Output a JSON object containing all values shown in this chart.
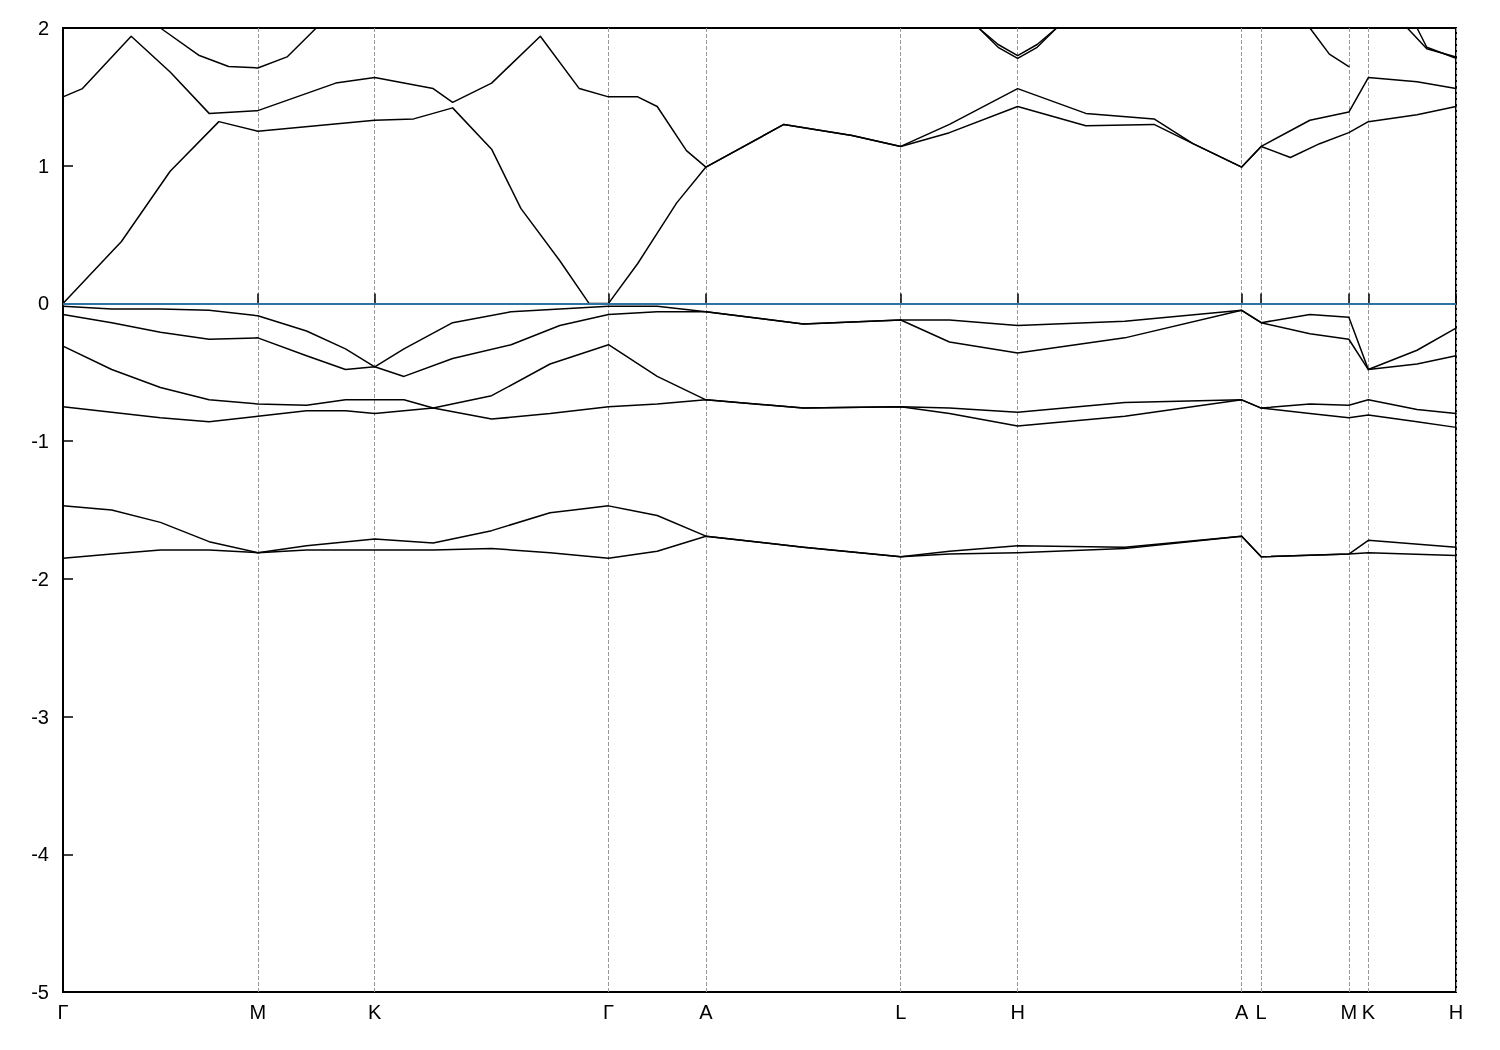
{
  "chart_data": {
    "type": "line",
    "marker": "none",
    "line_style": "solid",
    "grid": "x",
    "ylim": [
      -5,
      2
    ],
    "yticks": [
      -5,
      -4,
      -3,
      -2,
      -1,
      0,
      1,
      2
    ],
    "ref_lines": [
      {
        "axis": "y",
        "value": 0,
        "color": "#3a9ad9"
      }
    ],
    "categories": [
      "Γ",
      null,
      null,
      null,
      null,
      null,
      null,
      null,
      null,
      null,
      null,
      null,
      null,
      null,
      null,
      null,
      null,
      null,
      null,
      null,
      "M",
      null,
      null,
      null,
      null,
      null,
      null,
      null,
      null,
      null,
      null,
      null,
      "K",
      null,
      null,
      null,
      null,
      null,
      null,
      null,
      null,
      null,
      null,
      null,
      null,
      null,
      null,
      null,
      null,
      null,
      null,
      null,
      null,
      null,
      null,
      null,
      "Γ",
      null,
      null,
      null,
      null,
      null,
      null,
      null,
      null,
      null,
      "A",
      null,
      null,
      null,
      null,
      null,
      null,
      null,
      null,
      null,
      null,
      null,
      null,
      null,
      null,
      null,
      null,
      null,
      null,
      null,
      "L",
      null,
      null,
      null,
      null,
      null,
      null,
      null,
      null,
      null,
      null,
      null,
      "H",
      null,
      null,
      null,
      null,
      null,
      null,
      null,
      null,
      null,
      null,
      null,
      null,
      null,
      null,
      null,
      null,
      null,
      null,
      null,
      null,
      null,
      null,
      "A",
      null,
      "L",
      null,
      null,
      null,
      null,
      null,
      null,
      null,
      null,
      "M",
      null,
      "K",
      null,
      null,
      null,
      null,
      null,
      null,
      null,
      null,
      "H"
    ],
    "series": [
      {
        "color": "#000000",
        "values": [
          -1.85,
          null,
          null,
          null,
          null,
          -1.82,
          null,
          null,
          null,
          null,
          -1.79,
          null,
          null,
          null,
          null,
          -1.79,
          null,
          null,
          null,
          null,
          -1.81,
          null,
          null,
          null,
          null,
          -1.79,
          null,
          null,
          null,
          null,
          null,
          null,
          -1.79,
          null,
          null,
          null,
          null,
          null,
          -1.79,
          null,
          null,
          null,
          null,
          null,
          -1.78,
          null,
          null,
          null,
          null,
          null,
          -1.81,
          null,
          null,
          null,
          null,
          null,
          -1.85,
          null,
          null,
          null,
          null,
          -1.8,
          null,
          null,
          null,
          null,
          -1.69,
          null,
          null,
          null,
          null,
          null,
          null,
          null,
          null,
          null,
          -1.77,
          null,
          null,
          null,
          null,
          null,
          null,
          null,
          null,
          null,
          -1.84,
          null,
          null,
          null,
          null,
          -1.82,
          null,
          null,
          null,
          null,
          null,
          null,
          -1.81,
          null,
          null,
          null,
          null,
          null,
          null,
          null,
          null,
          null,
          null,
          -1.78,
          null,
          null,
          null,
          null,
          null,
          null,
          null,
          null,
          null,
          null,
          null,
          -1.69,
          null,
          -1.84,
          null,
          null,
          null,
          null,
          null,
          null,
          null,
          null,
          -1.82,
          null,
          -1.81,
          null,
          null,
          null,
          null,
          null,
          null,
          null,
          null,
          -1.83
        ]
      },
      {
        "color": "#000000",
        "values": [
          -1.47,
          null,
          null,
          null,
          null,
          -1.5,
          null,
          null,
          null,
          null,
          -1.59,
          null,
          null,
          null,
          null,
          -1.73,
          null,
          null,
          null,
          null,
          -1.81,
          null,
          null,
          null,
          null,
          -1.76,
          null,
          null,
          null,
          null,
          null,
          null,
          -1.71,
          null,
          null,
          null,
          null,
          null,
          -1.74,
          null,
          null,
          null,
          null,
          null,
          -1.65,
          null,
          null,
          null,
          null,
          null,
          -1.52,
          null,
          null,
          null,
          null,
          null,
          -1.47,
          null,
          null,
          null,
          null,
          -1.54,
          null,
          null,
          null,
          null,
          -1.69,
          null,
          null,
          null,
          null,
          null,
          null,
          null,
          null,
          null,
          -1.77,
          null,
          null,
          null,
          null,
          null,
          null,
          null,
          null,
          null,
          -1.84,
          null,
          null,
          null,
          null,
          -1.8,
          null,
          null,
          null,
          null,
          null,
          null,
          -1.76,
          null,
          null,
          null,
          null,
          null,
          null,
          null,
          null,
          null,
          null,
          -1.77,
          null,
          null,
          null,
          null,
          null,
          null,
          null,
          null,
          null,
          null,
          null,
          -1.69,
          null,
          -1.84,
          null,
          null,
          null,
          null,
          null,
          null,
          null,
          null,
          -1.82,
          null,
          -1.72,
          null,
          null,
          null,
          null,
          null,
          null,
          null,
          null,
          -1.77
        ]
      },
      {
        "color": "#000000",
        "values": [
          -0.75,
          null,
          null,
          null,
          null,
          -0.79,
          null,
          null,
          null,
          null,
          -0.83,
          null,
          null,
          null,
          null,
          -0.86,
          null,
          null,
          null,
          null,
          -0.82,
          null,
          null,
          null,
          null,
          -0.78,
          null,
          null,
          null,
          -0.78,
          null,
          null,
          -0.8,
          null,
          null,
          -0.78,
          null,
          null,
          -0.76,
          null,
          null,
          null,
          null,
          null,
          -0.84,
          null,
          null,
          null,
          null,
          null,
          -0.8,
          null,
          null,
          null,
          null,
          null,
          -0.75,
          null,
          null,
          null,
          null,
          -0.73,
          null,
          null,
          null,
          null,
          -0.7,
          null,
          null,
          null,
          null,
          null,
          null,
          null,
          null,
          null,
          -0.76,
          null,
          null,
          null,
          null,
          null,
          null,
          null,
          null,
          null,
          -0.75,
          null,
          null,
          null,
          null,
          -0.8,
          null,
          null,
          null,
          null,
          null,
          null,
          -0.89,
          null,
          null,
          null,
          null,
          null,
          null,
          null,
          null,
          null,
          null,
          -0.82,
          null,
          null,
          null,
          null,
          null,
          null,
          null,
          null,
          null,
          null,
          null,
          -0.7,
          null,
          -0.76,
          null,
          null,
          null,
          null,
          -0.8,
          null,
          null,
          null,
          -0.83,
          null,
          -0.81,
          null,
          null,
          null,
          null,
          -0.86,
          null,
          null,
          null,
          -0.9
        ]
      },
      {
        "color": "#000000",
        "values": [
          -0.31,
          null,
          null,
          null,
          null,
          -0.48,
          null,
          null,
          null,
          null,
          -0.61,
          null,
          null,
          null,
          null,
          -0.7,
          null,
          null,
          null,
          null,
          -0.73,
          null,
          null,
          null,
          null,
          -0.74,
          null,
          null,
          null,
          -0.7,
          null,
          null,
          -0.7,
          null,
          null,
          -0.7,
          null,
          null,
          -0.76,
          null,
          null,
          null,
          null,
          null,
          -0.67,
          null,
          null,
          null,
          null,
          null,
          -0.44,
          null,
          null,
          null,
          null,
          null,
          -0.3,
          null,
          null,
          null,
          null,
          -0.53,
          null,
          null,
          null,
          null,
          -0.7,
          null,
          null,
          null,
          null,
          null,
          null,
          null,
          null,
          null,
          -0.76,
          null,
          null,
          null,
          null,
          null,
          null,
          null,
          null,
          null,
          -0.75,
          null,
          null,
          null,
          null,
          -0.76,
          null,
          null,
          null,
          null,
          null,
          null,
          -0.79,
          null,
          null,
          null,
          null,
          null,
          null,
          null,
          null,
          null,
          null,
          -0.72,
          null,
          null,
          null,
          null,
          null,
          null,
          null,
          null,
          null,
          null,
          null,
          -0.7,
          null,
          -0.76,
          null,
          null,
          null,
          null,
          -0.73,
          null,
          null,
          null,
          -0.74,
          null,
          -0.7,
          null,
          null,
          null,
          null,
          -0.77,
          null,
          null,
          null,
          -0.8
        ]
      },
      {
        "color": "#000000",
        "values": [
          -0.08,
          null,
          null,
          null,
          null,
          -0.14,
          null,
          null,
          null,
          null,
          -0.21,
          null,
          null,
          null,
          null,
          -0.26,
          null,
          null,
          null,
          null,
          -0.25,
          null,
          null,
          null,
          null,
          -0.38,
          null,
          null,
          null,
          -0.48,
          null,
          null,
          -0.46,
          null,
          null,
          -0.53,
          null,
          null,
          null,
          null,
          -0.4,
          null,
          null,
          null,
          null,
          null,
          -0.3,
          null,
          null,
          null,
          null,
          -0.16,
          null,
          null,
          null,
          null,
          -0.08,
          null,
          null,
          null,
          null,
          -0.06,
          null,
          null,
          null,
          null,
          -0.06,
          null,
          null,
          null,
          null,
          null,
          null,
          null,
          null,
          null,
          -0.15,
          null,
          null,
          null,
          null,
          null,
          null,
          null,
          null,
          null,
          -0.12,
          null,
          null,
          null,
          null,
          -0.28,
          null,
          null,
          null,
          null,
          null,
          null,
          -0.36,
          null,
          null,
          null,
          null,
          null,
          null,
          null,
          null,
          null,
          null,
          -0.25,
          null,
          null,
          null,
          null,
          null,
          null,
          null,
          null,
          null,
          null,
          null,
          -0.05,
          null,
          -0.14,
          null,
          null,
          null,
          null,
          -0.22,
          null,
          null,
          null,
          -0.26,
          null,
          -0.48,
          null,
          null,
          null,
          null,
          -0.44,
          null,
          null,
          null,
          -0.38
        ]
      },
      {
        "color": "#000000",
        "values": [
          -0.02,
          null,
          null,
          null,
          null,
          -0.04,
          null,
          null,
          null,
          null,
          -0.04,
          null,
          null,
          null,
          null,
          -0.05,
          null,
          null,
          null,
          null,
          -0.09,
          null,
          null,
          null,
          null,
          -0.2,
          null,
          null,
          null,
          -0.33,
          null,
          null,
          -0.46,
          null,
          null,
          -0.33,
          null,
          null,
          null,
          null,
          -0.14,
          null,
          null,
          null,
          null,
          null,
          -0.06,
          null,
          null,
          null,
          null,
          -0.04,
          null,
          null,
          null,
          null,
          -0.02,
          null,
          null,
          null,
          null,
          -0.02,
          null,
          null,
          null,
          null,
          -0.06,
          null,
          null,
          null,
          null,
          null,
          null,
          null,
          null,
          null,
          -0.15,
          null,
          null,
          null,
          null,
          null,
          null,
          null,
          null,
          null,
          -0.12,
          null,
          null,
          null,
          null,
          -0.12,
          null,
          null,
          null,
          null,
          null,
          null,
          -0.16,
          null,
          null,
          null,
          null,
          null,
          null,
          null,
          null,
          null,
          null,
          -0.13,
          null,
          null,
          null,
          null,
          null,
          null,
          null,
          null,
          null,
          null,
          null,
          -0.05,
          null,
          -0.14,
          null,
          null,
          null,
          null,
          -0.08,
          null,
          null,
          null,
          -0.1,
          null,
          -0.48,
          null,
          null,
          null,
          null,
          -0.34,
          null,
          null,
          null,
          -0.18
        ]
      },
      {
        "color": "#000000",
        "values": [
          0.0,
          null,
          null,
          null,
          null,
          null,
          0.45,
          null,
          null,
          null,
          null,
          0.96,
          null,
          null,
          null,
          null,
          1.32,
          null,
          null,
          null,
          1.25,
          null,
          null,
          null,
          null,
          null,
          1.29,
          null,
          null,
          null,
          null,
          null,
          1.33,
          null,
          null,
          null,
          1.34,
          null,
          null,
          null,
          1.42,
          null,
          null,
          null,
          1.12,
          null,
          null,
          0.69,
          null,
          null,
          null,
          0.31,
          null,
          null,
          0.0,
          null,
          0.0,
          null,
          null,
          0.29,
          null,
          null,
          null,
          0.73,
          null,
          null,
          0.99,
          null,
          null,
          null,
          null,
          null,
          null,
          null,
          1.3,
          null,
          null,
          null,
          null,
          null,
          null,
          1.22,
          null,
          null,
          null,
          null,
          1.14,
          null,
          null,
          null,
          null,
          1.24,
          null,
          null,
          null,
          null,
          null,
          null,
          1.43,
          null,
          null,
          null,
          null,
          null,
          null,
          1.29,
          null,
          null,
          null,
          null,
          null,
          null,
          1.3,
          null,
          null,
          null,
          1.16,
          null,
          null,
          null,
          null,
          0.99,
          null,
          1.14,
          null,
          null,
          1.06,
          null,
          null,
          1.16,
          null,
          null,
          1.24,
          null,
          1.32,
          null,
          null,
          null,
          null,
          1.37,
          null,
          null,
          null,
          1.43
        ]
      },
      {
        "color": "#000000",
        "values": [
          1.5,
          null,
          1.56,
          null,
          null,
          null,
          null,
          1.94,
          null,
          null,
          null,
          1.68,
          null,
          null,
          null,
          1.38,
          null,
          null,
          null,
          null,
          1.4,
          null,
          null,
          null,
          null,
          null,
          null,
          null,
          1.6,
          null,
          null,
          null,
          1.64,
          null,
          null,
          null,
          null,
          null,
          1.56,
          null,
          1.46,
          null,
          null,
          null,
          1.6,
          null,
          null,
          null,
          null,
          1.94,
          null,
          null,
          null,
          1.56,
          null,
          null,
          1.5,
          null,
          null,
          1.5,
          null,
          1.43,
          null,
          null,
          1.11,
          null,
          0.99,
          null,
          null,
          null,
          null,
          null,
          null,
          null,
          1.3,
          null,
          null,
          null,
          null,
          null,
          null,
          1.22,
          null,
          null,
          null,
          null,
          1.14,
          null,
          null,
          null,
          null,
          1.3,
          null,
          null,
          null,
          null,
          null,
          null,
          1.56,
          null,
          null,
          null,
          null,
          null,
          null,
          1.38,
          null,
          null,
          null,
          null,
          null,
          null,
          1.34,
          null,
          null,
          null,
          1.16,
          null,
          null,
          null,
          null,
          0.99,
          null,
          1.14,
          null,
          null,
          null,
          null,
          1.33,
          null,
          null,
          null,
          1.39,
          null,
          1.64,
          null,
          null,
          null,
          null,
          1.61,
          null,
          null,
          null,
          1.56
        ]
      },
      {
        "color": "#000000",
        "values": [
          null,
          null,
          null,
          null,
          null,
          null,
          null,
          null,
          null,
          null,
          2.0,
          null,
          null,
          null,
          1.8,
          null,
          null,
          1.72,
          null,
          null,
          1.71,
          null,
          null,
          1.79,
          null,
          null,
          2.0,
          null,
          null,
          null,
          null,
          null,
          null,
          null,
          null,
          null,
          null,
          null,
          null,
          null,
          null,
          null,
          null,
          null,
          null,
          null,
          null,
          null,
          null,
          null,
          null,
          null,
          null,
          null,
          null,
          null,
          null,
          null,
          null,
          null,
          null,
          null,
          null,
          null,
          null,
          null,
          null,
          null,
          null,
          null,
          null,
          null,
          null,
          null,
          null,
          null,
          null,
          null,
          null,
          null,
          null,
          null,
          null,
          null,
          null,
          null,
          null,
          null,
          null,
          null,
          null,
          null,
          null,
          null,
          null,
          null,
          null,
          null,
          null,
          null,
          null,
          null,
          null,
          null,
          null,
          null,
          null,
          null,
          null,
          null,
          null,
          null,
          null,
          null,
          null,
          null,
          null,
          null,
          null,
          null,
          null,
          null,
          null,
          null,
          null,
          null,
          null,
          null,
          null,
          null,
          null,
          null,
          null,
          null,
          null,
          null,
          null,
          null,
          null,
          null,
          null,
          null,
          null,
          null
        ]
      },
      {
        "color": "#000000",
        "values": [
          null,
          null,
          null,
          null,
          null,
          null,
          null,
          null,
          null,
          null,
          null,
          null,
          null,
          null,
          null,
          null,
          null,
          null,
          null,
          null,
          null,
          null,
          null,
          null,
          null,
          null,
          null,
          null,
          null,
          null,
          null,
          null,
          null,
          null,
          null,
          null,
          null,
          null,
          null,
          null,
          null,
          null,
          null,
          null,
          null,
          null,
          null,
          null,
          null,
          null,
          null,
          null,
          null,
          null,
          null,
          null,
          null,
          null,
          null,
          null,
          null,
          null,
          null,
          null,
          null,
          null,
          null,
          null,
          null,
          null,
          null,
          null,
          null,
          null,
          null,
          null,
          null,
          null,
          null,
          null,
          null,
          null,
          null,
          null,
          null,
          null,
          null,
          null,
          null,
          null,
          null,
          null,
          null,
          null,
          2.0,
          null,
          1.86,
          null,
          1.78,
          null,
          1.86,
          null,
          2.0,
          null,
          null,
          null,
          null,
          null,
          null,
          null,
          null,
          null,
          null,
          null,
          null,
          null,
          null,
          null,
          null,
          null,
          null,
          null,
          null,
          null,
          null,
          null,
          null,
          null,
          null,
          null,
          null,
          null,
          null,
          null,
          null,
          null,
          null,
          null,
          null,
          null,
          null,
          null,
          null,
          null
        ]
      },
      {
        "color": "#000000",
        "values": [
          null,
          null,
          null,
          null,
          null,
          null,
          null,
          null,
          null,
          null,
          null,
          null,
          null,
          null,
          null,
          null,
          null,
          null,
          null,
          null,
          null,
          null,
          null,
          null,
          null,
          null,
          null,
          null,
          null,
          null,
          null,
          null,
          null,
          null,
          null,
          null,
          null,
          null,
          null,
          null,
          null,
          null,
          null,
          null,
          null,
          null,
          null,
          null,
          null,
          null,
          null,
          null,
          null,
          null,
          null,
          null,
          null,
          null,
          null,
          null,
          null,
          null,
          null,
          null,
          null,
          null,
          null,
          null,
          null,
          null,
          null,
          null,
          null,
          null,
          null,
          null,
          null,
          null,
          null,
          null,
          null,
          null,
          null,
          null,
          null,
          null,
          null,
          null,
          null,
          null,
          null,
          null,
          null,
          null,
          2.0,
          null,
          1.88,
          null,
          1.8,
          null,
          1.88,
          null,
          2.0,
          null,
          null,
          null,
          null,
          null,
          null,
          null,
          null,
          null,
          null,
          null,
          null,
          null,
          null,
          null,
          null,
          null,
          null,
          null,
          null,
          null,
          null,
          null,
          null,
          null,
          null,
          null,
          null,
          null,
          null,
          null,
          null,
          null,
          null,
          null,
          null,
          null,
          null,
          null,
          null,
          null
        ]
      },
      {
        "color": "#000000",
        "values": [
          null,
          null,
          null,
          null,
          null,
          null,
          null,
          null,
          null,
          null,
          null,
          null,
          null,
          null,
          null,
          null,
          null,
          null,
          null,
          null,
          null,
          null,
          null,
          null,
          null,
          null,
          null,
          null,
          null,
          null,
          null,
          null,
          null,
          null,
          null,
          null,
          null,
          null,
          null,
          null,
          null,
          null,
          null,
          null,
          null,
          null,
          null,
          null,
          null,
          null,
          null,
          null,
          null,
          null,
          null,
          null,
          null,
          null,
          null,
          null,
          null,
          null,
          null,
          null,
          null,
          null,
          null,
          null,
          null,
          null,
          null,
          null,
          null,
          null,
          null,
          null,
          null,
          null,
          null,
          null,
          null,
          null,
          null,
          null,
          null,
          null,
          null,
          null,
          null,
          null,
          null,
          null,
          null,
          null,
          null,
          null,
          null,
          null,
          null,
          null,
          null,
          null,
          null,
          null,
          null,
          null,
          null,
          null,
          null,
          null,
          null,
          null,
          null,
          null,
          null,
          null,
          null,
          null,
          null,
          null,
          null,
          null,
          null,
          null,
          null,
          null,
          null,
          null,
          2.0,
          null,
          1.81,
          null,
          1.72,
          null,
          null,
          null,
          null,
          null,
          null,
          null,
          null,
          null,
          null,
          null
        ]
      },
      {
        "color": "#000000",
        "values": [
          null,
          null,
          null,
          null,
          null,
          null,
          null,
          null,
          null,
          null,
          null,
          null,
          null,
          null,
          null,
          null,
          null,
          null,
          null,
          null,
          null,
          null,
          null,
          null,
          null,
          null,
          null,
          null,
          null,
          null,
          null,
          null,
          null,
          null,
          null,
          null,
          null,
          null,
          null,
          null,
          null,
          null,
          null,
          null,
          null,
          null,
          null,
          null,
          null,
          null,
          null,
          null,
          null,
          null,
          null,
          null,
          null,
          null,
          null,
          null,
          null,
          null,
          null,
          null,
          null,
          null,
          null,
          null,
          null,
          null,
          null,
          null,
          null,
          null,
          null,
          null,
          null,
          null,
          null,
          null,
          null,
          null,
          null,
          null,
          null,
          null,
          null,
          null,
          null,
          null,
          null,
          null,
          null,
          null,
          null,
          null,
          null,
          null,
          null,
          null,
          null,
          null,
          null,
          null,
          null,
          null,
          null,
          null,
          null,
          null,
          null,
          null,
          null,
          null,
          null,
          null,
          null,
          null,
          null,
          null,
          null,
          null,
          null,
          null,
          null,
          null,
          null,
          null,
          null,
          null,
          null,
          null,
          null,
          null,
          null,
          null,
          null,
          null,
          2.0,
          null,
          1.85,
          null,
          null,
          1.79
        ]
      },
      {
        "color": "#000000",
        "values": [
          null,
          null,
          null,
          null,
          null,
          null,
          null,
          null,
          null,
          null,
          null,
          null,
          null,
          null,
          null,
          null,
          null,
          null,
          null,
          null,
          null,
          null,
          null,
          null,
          null,
          null,
          null,
          null,
          null,
          null,
          null,
          null,
          null,
          null,
          null,
          null,
          null,
          null,
          null,
          null,
          null,
          null,
          null,
          null,
          null,
          null,
          null,
          null,
          null,
          null,
          null,
          null,
          null,
          null,
          null,
          null,
          null,
          null,
          null,
          null,
          null,
          null,
          null,
          null,
          null,
          null,
          null,
          null,
          null,
          null,
          null,
          null,
          null,
          null,
          null,
          null,
          null,
          null,
          null,
          null,
          null,
          null,
          null,
          null,
          null,
          null,
          null,
          null,
          null,
          null,
          null,
          null,
          null,
          null,
          null,
          null,
          null,
          null,
          null,
          null,
          null,
          null,
          null,
          null,
          null,
          null,
          null,
          null,
          null,
          null,
          null,
          null,
          null,
          null,
          null,
          null,
          null,
          null,
          null,
          null,
          null,
          null,
          null,
          null,
          null,
          null,
          null,
          null,
          null,
          null,
          null,
          null,
          null,
          null,
          null,
          null,
          null,
          null,
          null,
          2.0,
          1.86,
          null,
          null,
          1.78
        ]
      }
    ]
  }
}
